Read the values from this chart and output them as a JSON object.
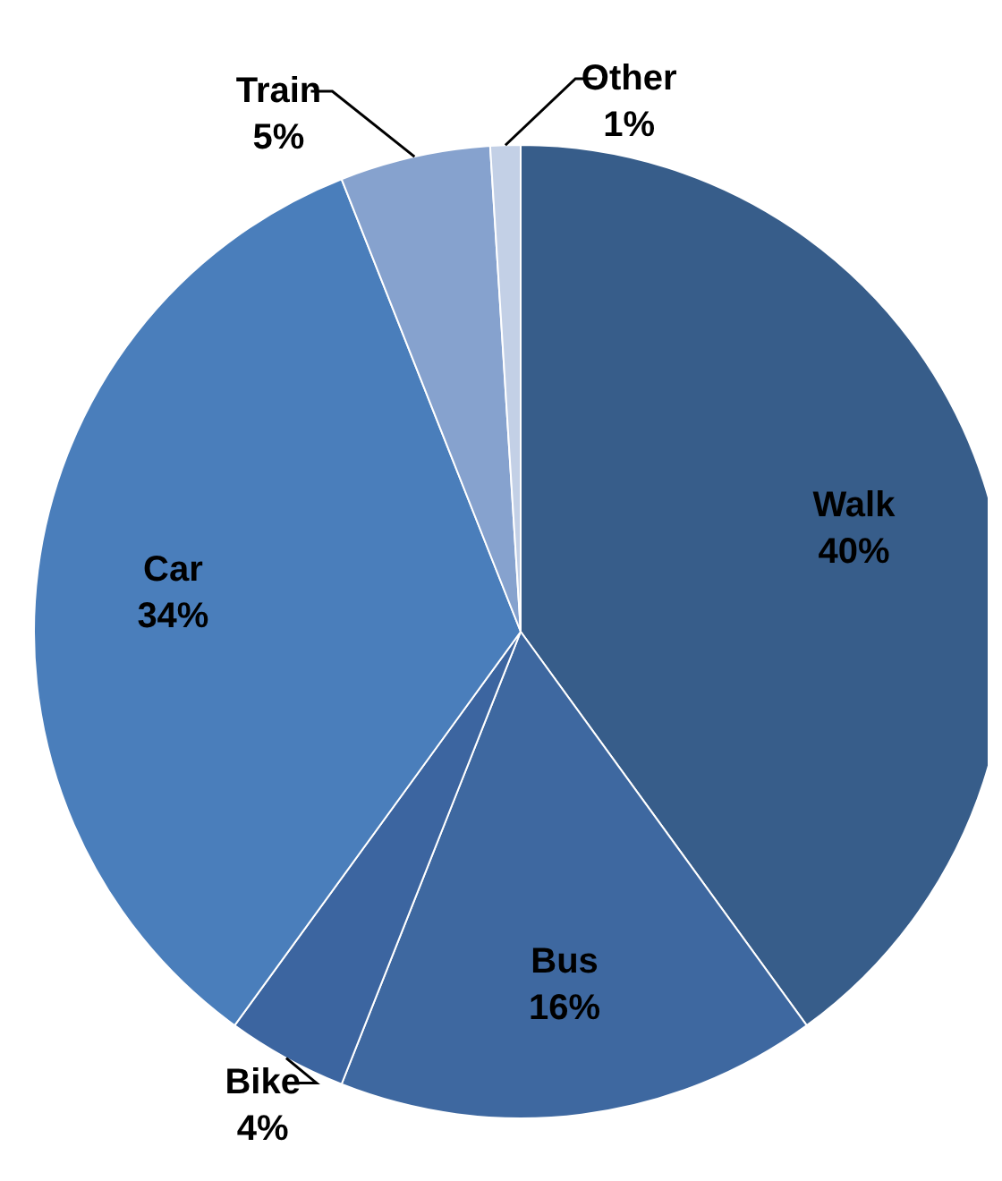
{
  "chart_data": {
    "type": "pie",
    "categories": [
      "Walk",
      "Bus",
      "Bike",
      "Car",
      "Train",
      "Other"
    ],
    "values": [
      40,
      16,
      4,
      34,
      5,
      1
    ],
    "value_labels": [
      "40%",
      "16%",
      "4%",
      "34%",
      "5%",
      "1%"
    ],
    "colors": [
      "#375d8a",
      "#3e68a0",
      "#3c65a0",
      "#4a7ebb",
      "#86a2ce",
      "#c3d0e6"
    ]
  }
}
